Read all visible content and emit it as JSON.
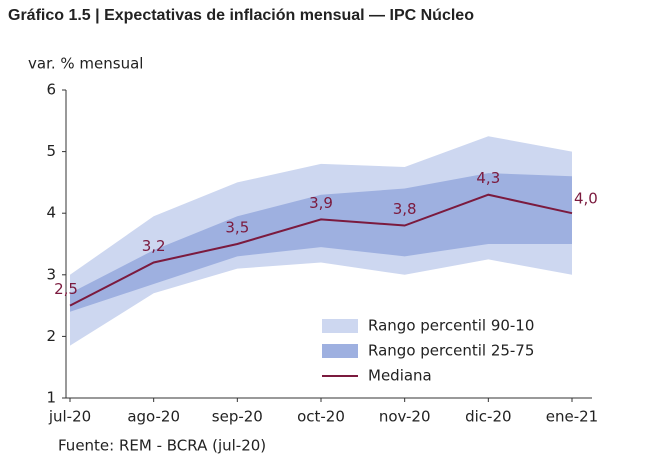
{
  "chart_data": {
    "type": "line",
    "title": "Gráfico 1.5 | Expectativas de inflación mensual — IPC Núcleo",
    "y_label": "var. % mensual",
    "source": "Fuente: REM - BCRA (jul-20)",
    "categories": [
      "jul-20",
      "ago-20",
      "sep-20",
      "oct-20",
      "nov-20",
      "dic-20",
      "ene-21"
    ],
    "bands": [
      {
        "name": "Rango percentil 90-10",
        "color": "#cdd7f0",
        "low": [
          1.85,
          2.7,
          3.1,
          3.2,
          3.0,
          3.25,
          3.0
        ],
        "high": [
          3.0,
          3.95,
          4.5,
          4.8,
          4.75,
          5.25,
          5.0
        ]
      },
      {
        "name": "Rango percentil 25-75",
        "color": "#9eb0e0",
        "low": [
          2.4,
          2.85,
          3.3,
          3.45,
          3.3,
          3.5,
          3.5
        ],
        "high": [
          2.7,
          3.4,
          3.95,
          4.3,
          4.4,
          4.65,
          4.6
        ]
      }
    ],
    "series": [
      {
        "name": "Mediana",
        "color": "#7b1a3e",
        "values": [
          2.5,
          3.2,
          3.5,
          3.9,
          3.8,
          4.3,
          4.0
        ],
        "value_labels": [
          "2,5",
          "3,2",
          "3,5",
          "3,9",
          "3,8",
          "4,3",
          "4,0"
        ]
      }
    ],
    "ylim": [
      1,
      6
    ],
    "yticks": [
      1,
      2,
      3,
      4,
      5,
      6
    ]
  }
}
